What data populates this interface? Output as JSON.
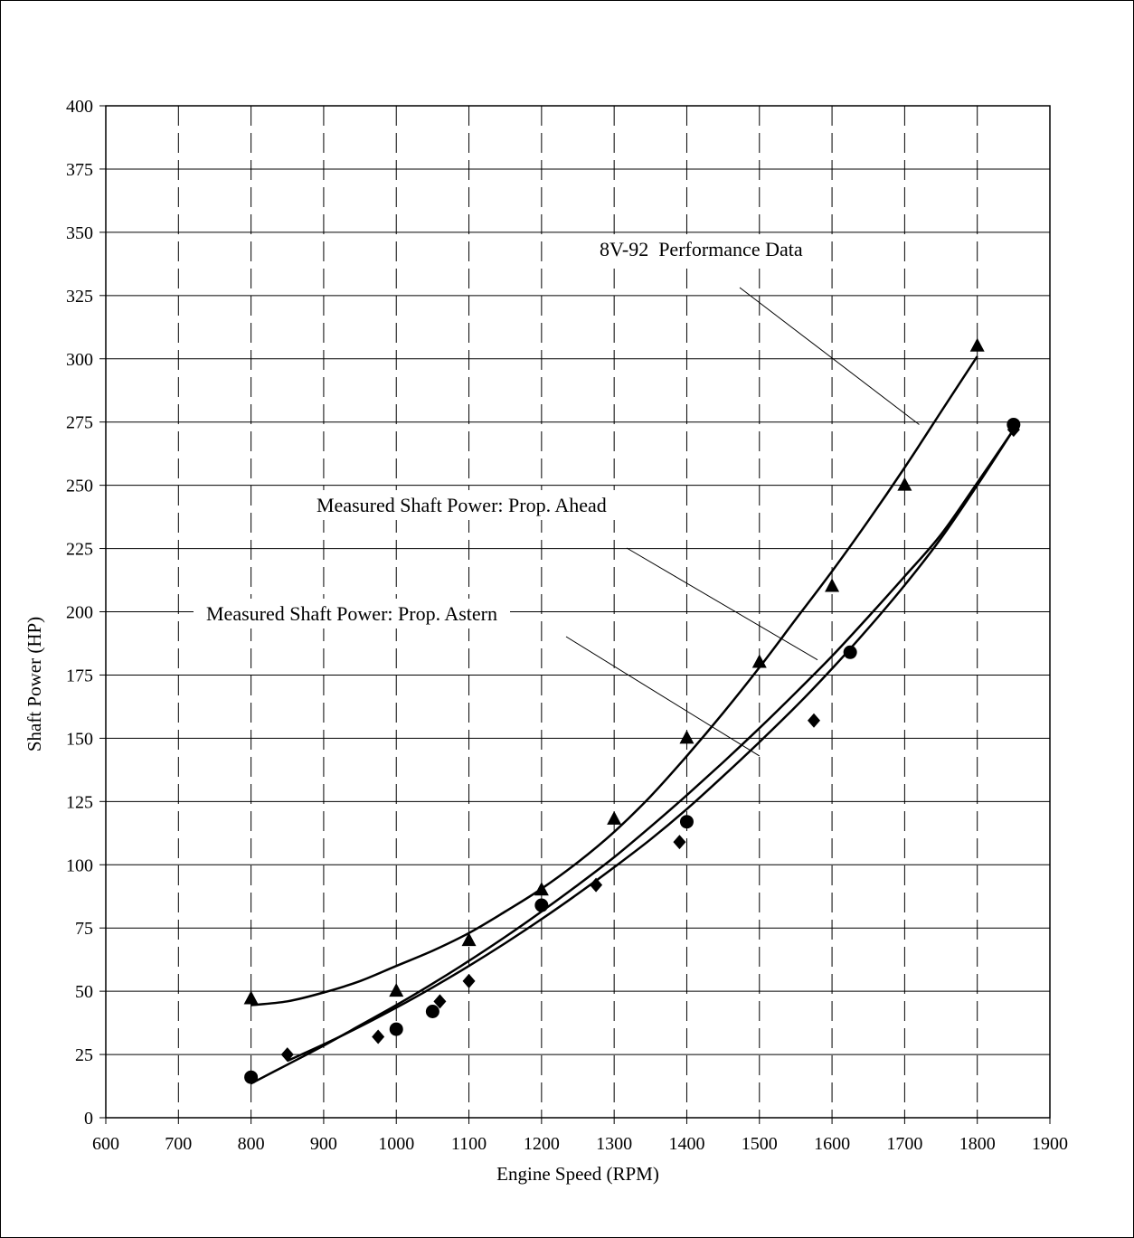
{
  "chart_data": {
    "type": "scatter",
    "title": "",
    "xlabel": "Engine Speed (RPM)",
    "ylabel": "Shaft Power (HP)",
    "xlim": [
      600,
      1900
    ],
    "ylim": [
      0,
      400
    ],
    "x_ticks": [
      600,
      700,
      800,
      900,
      1000,
      1100,
      1200,
      1300,
      1400,
      1500,
      1600,
      1700,
      1800,
      1900
    ],
    "y_ticks": [
      0,
      25,
      50,
      75,
      100,
      125,
      150,
      175,
      200,
      225,
      250,
      275,
      300,
      325,
      350,
      375,
      400
    ],
    "grid": true,
    "series": [
      {
        "name": "8V-92 Performance Data",
        "marker": "triangle",
        "x": [
          800,
          1000,
          1100,
          1200,
          1300,
          1400,
          1500,
          1600,
          1700,
          1800
        ],
        "y": [
          47,
          50,
          70,
          90,
          118,
          150,
          180,
          210,
          250,
          305
        ],
        "trend_x": [
          800,
          850,
          900,
          950,
          1000,
          1050,
          1100,
          1150,
          1200,
          1250,
          1300,
          1350,
          1400,
          1450,
          1500,
          1550,
          1600,
          1650,
          1700,
          1750,
          1800
        ],
        "trend_y": [
          44.5,
          46,
          49.5,
          54,
          60,
          66,
          73,
          81.5,
          90.5,
          101,
          113,
          127,
          143,
          160,
          178,
          197,
          216,
          236,
          257,
          279,
          301
        ]
      },
      {
        "name": "Measured Shaft Power: Prop. Ahead",
        "marker": "circle",
        "x": [
          800,
          1000,
          1050,
          1200,
          1400,
          1625,
          1850
        ],
        "y": [
          16,
          35,
          42,
          84,
          117,
          184,
          274
        ],
        "trend_x": [
          800,
          850,
          900,
          950,
          1000,
          1050,
          1100,
          1150,
          1200,
          1250,
          1300,
          1350,
          1400,
          1450,
          1500,
          1550,
          1600,
          1650,
          1700,
          1750,
          1800,
          1850
        ],
        "trend_y": [
          13.5,
          21,
          28.5,
          36.5,
          44.5,
          53,
          62,
          71.5,
          81.5,
          92,
          103,
          115,
          127.5,
          140.5,
          154,
          168,
          182.5,
          198,
          214,
          230.5,
          251,
          272
        ]
      },
      {
        "name": "Measured Shaft Power: Prop. Astern",
        "marker": "diamond",
        "x": [
          850,
          975,
          1060,
          1100,
          1275,
          1390,
          1575,
          1850
        ],
        "y": [
          25,
          32,
          46,
          54,
          92,
          109,
          157,
          272
        ],
        "trend_x": [
          850,
          900,
          950,
          1000,
          1050,
          1100,
          1150,
          1200,
          1250,
          1300,
          1350,
          1400,
          1450,
          1500,
          1550,
          1600,
          1650,
          1700,
          1750,
          1800,
          1850
        ],
        "trend_y": [
          22.5,
          29,
          36,
          43.5,
          51.5,
          60,
          69,
          78.5,
          88.5,
          99,
          110,
          122,
          135,
          148.5,
          162.5,
          177.5,
          193.5,
          210.5,
          229,
          250,
          272
        ]
      }
    ],
    "annotations": [
      {
        "text": "8V-92  Performance Data",
        "target_series": 0
      },
      {
        "text": "Measured Shaft Power: Prop. Ahead",
        "target_series": 1
      },
      {
        "text": "Measured Shaft Power: Prop. Astern",
        "target_series": 2
      }
    ]
  }
}
